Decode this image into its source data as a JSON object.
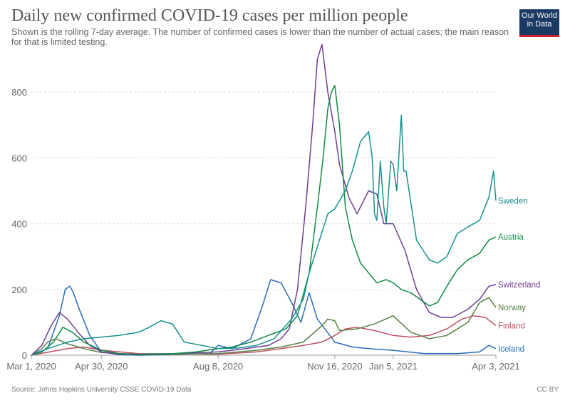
{
  "header": {
    "title": "Daily new confirmed COVID-19 cases per million people",
    "subtitle": "Shown is the rolling 7-day average. The number of confirmed cases is lower than the number of actual cases; the main reason for that is limited testing.",
    "logo_line1": "Our World",
    "logo_line2": "in Data"
  },
  "footer": {
    "source": "Source: Johns Hopkins University CSSE COVID-19 Data",
    "license": "CC BY"
  },
  "chart_data": {
    "type": "line",
    "title": "Daily new confirmed COVID-19 cases per million people",
    "ylim": [
      0,
      950
    ],
    "y_ticks": [
      0,
      200,
      400,
      600,
      800
    ],
    "y_tick_labels": [
      "0",
      "200",
      "400",
      "600",
      "800"
    ],
    "x_range": [
      "2020-03-01",
      "2021-04-03"
    ],
    "x_tick_labels": [
      "Mar 1, 2020",
      "Apr 30, 2020",
      "Aug 8, 2020",
      "Nov 16, 2020",
      "Jan 5, 2021",
      "Apr 3, 2021"
    ],
    "x_tick_dates": [
      "2020-03-01",
      "2020-04-30",
      "2020-08-08",
      "2020-11-16",
      "2021-01-05",
      "2021-04-03"
    ],
    "grid": true,
    "legend": "end-of-line labels",
    "series": [
      {
        "name": "Sweden",
        "color": "#15908f",
        "x": [
          "2020-03-01",
          "2020-03-15",
          "2020-04-01",
          "2020-04-15",
          "2020-04-30",
          "2020-05-15",
          "2020-06-01",
          "2020-06-10",
          "2020-06-20",
          "2020-06-30",
          "2020-07-10",
          "2020-07-25",
          "2020-08-08",
          "2020-08-25",
          "2020-09-10",
          "2020-09-25",
          "2020-10-10",
          "2020-10-20",
          "2020-10-25",
          "2020-11-01",
          "2020-11-10",
          "2020-11-16",
          "2020-11-25",
          "2020-12-01",
          "2020-12-08",
          "2020-12-15",
          "2020-12-18",
          "2020-12-20",
          "2020-12-22",
          "2020-12-25",
          "2020-12-28",
          "2020-12-30",
          "2021-01-03",
          "2021-01-05",
          "2021-01-08",
          "2021-01-12",
          "2021-01-14",
          "2021-01-16",
          "2021-01-25",
          "2021-02-05",
          "2021-02-12",
          "2021-02-20",
          "2021-03-01",
          "2021-03-10",
          "2021-03-20",
          "2021-03-28",
          "2021-03-31",
          "2021-04-01",
          "2021-04-03"
        ],
        "y": [
          0,
          20,
          40,
          50,
          55,
          60,
          70,
          85,
          105,
          95,
          40,
          30,
          20,
          22,
          30,
          50,
          110,
          170,
          250,
          330,
          430,
          445,
          500,
          560,
          650,
          680,
          600,
          430,
          410,
          590,
          450,
          400,
          590,
          580,
          500,
          730,
          560,
          560,
          350,
          290,
          280,
          300,
          370,
          390,
          410,
          480,
          540,
          560,
          470
        ]
      },
      {
        "name": "Austria",
        "color": "#0e8a46",
        "x": [
          "2020-03-01",
          "2020-03-10",
          "2020-03-20",
          "2020-03-28",
          "2020-04-05",
          "2020-04-15",
          "2020-04-30",
          "2020-05-15",
          "2020-06-01",
          "2020-07-01",
          "2020-07-20",
          "2020-08-08",
          "2020-08-20",
          "2020-09-05",
          "2020-09-20",
          "2020-10-05",
          "2020-10-15",
          "2020-10-25",
          "2020-11-01",
          "2020-11-06",
          "2020-11-10",
          "2020-11-13",
          "2020-11-16",
          "2020-11-20",
          "2020-11-25",
          "2020-12-01",
          "2020-12-08",
          "2020-12-15",
          "2020-12-22",
          "2020-12-30",
          "2021-01-05",
          "2021-01-12",
          "2021-01-20",
          "2021-01-28",
          "2021-02-05",
          "2021-02-12",
          "2021-02-20",
          "2021-03-01",
          "2021-03-10",
          "2021-03-20",
          "2021-03-28",
          "2021-04-03"
        ],
        "y": [
          0,
          10,
          40,
          85,
          70,
          40,
          15,
          5,
          3,
          5,
          10,
          20,
          25,
          40,
          60,
          80,
          120,
          250,
          450,
          600,
          750,
          800,
          820,
          700,
          450,
          350,
          280,
          250,
          220,
          230,
          220,
          200,
          190,
          170,
          150,
          160,
          210,
          260,
          290,
          310,
          350,
          360
        ]
      },
      {
        "name": "Switzerland",
        "color": "#6d3e91",
        "x": [
          "2020-03-01",
          "2020-03-10",
          "2020-03-18",
          "2020-03-25",
          "2020-04-01",
          "2020-04-10",
          "2020-04-20",
          "2020-04-30",
          "2020-05-15",
          "2020-06-01",
          "2020-07-01",
          "2020-08-08",
          "2020-09-01",
          "2020-09-20",
          "2020-10-01",
          "2020-10-08",
          "2020-10-15",
          "2020-10-22",
          "2020-10-28",
          "2020-11-01",
          "2020-11-05",
          "2020-11-10",
          "2020-11-16",
          "2020-11-20",
          "2020-11-28",
          "2020-12-05",
          "2020-12-15",
          "2020-12-22",
          "2020-12-28",
          "2021-01-05",
          "2021-01-15",
          "2021-01-25",
          "2021-02-05",
          "2021-02-15",
          "2021-02-25",
          "2021-03-10",
          "2021-03-20",
          "2021-03-28",
          "2021-04-03"
        ],
        "y": [
          0,
          30,
          90,
          130,
          110,
          70,
          30,
          10,
          3,
          2,
          5,
          10,
          20,
          30,
          50,
          80,
          200,
          450,
          700,
          900,
          945,
          800,
          680,
          580,
          480,
          430,
          500,
          490,
          400,
          400,
          320,
          200,
          130,
          115,
          115,
          140,
          170,
          210,
          215
        ]
      },
      {
        "name": "Norway",
        "color": "#578145",
        "x": [
          "2020-03-01",
          "2020-03-10",
          "2020-03-15",
          "2020-03-22",
          "2020-04-01",
          "2020-04-15",
          "2020-04-30",
          "2020-06-01",
          "2020-08-08",
          "2020-09-10",
          "2020-10-01",
          "2020-10-20",
          "2020-11-05",
          "2020-11-10",
          "2020-11-16",
          "2020-11-20",
          "2020-12-05",
          "2020-12-20",
          "2021-01-05",
          "2021-01-20",
          "2021-02-05",
          "2021-02-20",
          "2021-03-10",
          "2021-03-20",
          "2021-03-28",
          "2021-04-03"
        ],
        "y": [
          0,
          20,
          40,
          50,
          35,
          20,
          8,
          2,
          5,
          15,
          25,
          40,
          90,
          110,
          105,
          75,
          80,
          95,
          120,
          70,
          50,
          60,
          100,
          160,
          175,
          145
        ]
      },
      {
        "name": "Finland",
        "color": "#c15065",
        "x": [
          "2020-03-01",
          "2020-04-01",
          "2020-04-15",
          "2020-05-01",
          "2020-06-01",
          "2020-08-08",
          "2020-09-10",
          "2020-10-01",
          "2020-10-20",
          "2020-11-05",
          "2020-11-16",
          "2020-11-25",
          "2020-12-05",
          "2020-12-20",
          "2021-01-05",
          "2021-01-20",
          "2021-02-05",
          "2021-02-20",
          "2021-03-05",
          "2021-03-15",
          "2021-03-25",
          "2021-04-03"
        ],
        "y": [
          0,
          20,
          25,
          15,
          5,
          3,
          10,
          20,
          30,
          40,
          60,
          80,
          85,
          75,
          60,
          55,
          60,
          80,
          110,
          120,
          115,
          90
        ]
      },
      {
        "name": "Iceland",
        "color": "#286bbb",
        "x": [
          "2020-03-01",
          "2020-03-15",
          "2020-03-25",
          "2020-03-30",
          "2020-04-03",
          "2020-04-06",
          "2020-04-10",
          "2020-04-20",
          "2020-04-30",
          "2020-05-15",
          "2020-06-01",
          "2020-08-01",
          "2020-08-08",
          "2020-08-20",
          "2020-09-05",
          "2020-09-15",
          "2020-09-22",
          "2020-10-01",
          "2020-10-10",
          "2020-10-18",
          "2020-10-25",
          "2020-11-01",
          "2020-11-16",
          "2020-12-01",
          "2020-12-15",
          "2021-01-05",
          "2021-02-01",
          "2021-03-01",
          "2021-03-20",
          "2021-03-28",
          "2021-04-03"
        ],
        "y": [
          0,
          20,
          120,
          200,
          210,
          190,
          150,
          60,
          10,
          2,
          0,
          5,
          30,
          20,
          50,
          150,
          230,
          220,
          160,
          100,
          190,
          110,
          40,
          25,
          20,
          15,
          5,
          5,
          10,
          30,
          20
        ]
      }
    ]
  }
}
